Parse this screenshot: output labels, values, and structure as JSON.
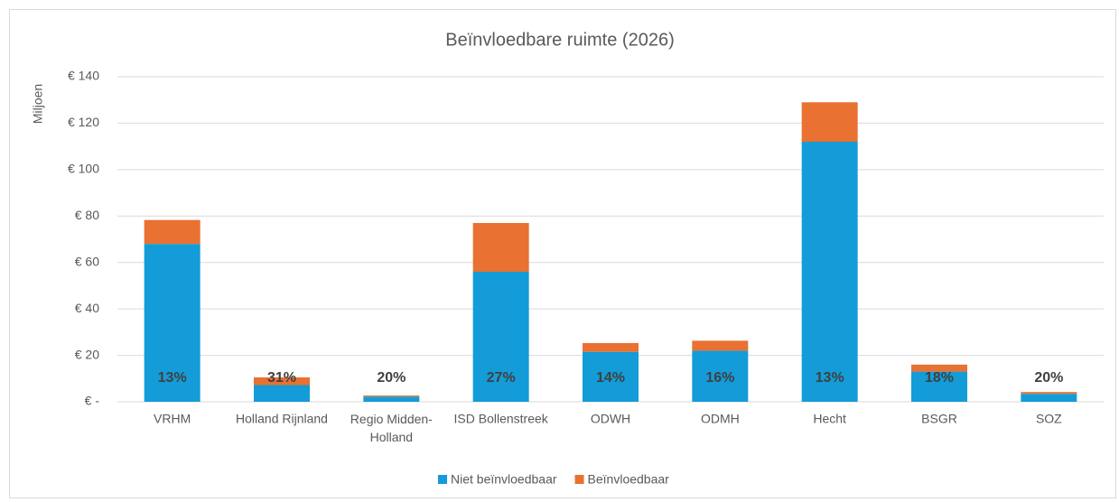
{
  "chart_data": {
    "type": "stacked_bar",
    "title": "Beïnvloedbare ruimte (2026)",
    "y_axis_label": "Miljoen",
    "categories": [
      "VRHM",
      "Holland Rijnland",
      "Regio Midden-Holland",
      "ISD Bollenstreek",
      "ODWH",
      "ODMH",
      "Hecht",
      "BSGR",
      "SOZ"
    ],
    "series": [
      {
        "name": "Niet beïnvloedbaar",
        "color": "#139cd8",
        "values": [
          68,
          7.2,
          2.2,
          56,
          21.5,
          22,
          112,
          13,
          3.4
        ]
      },
      {
        "name": "Beïnvloedbaar",
        "color": "#e97132",
        "values": [
          10.3,
          3.3,
          0.5,
          21,
          3.8,
          4.3,
          17,
          3,
          0.8
        ]
      }
    ],
    "annotations": [
      "13%",
      "31%",
      "20%",
      "27%",
      "14%",
      "16%",
      "13%",
      "18%",
      "20%"
    ],
    "ylim": [
      0,
      140
    ],
    "yticks": [
      {
        "value": 0,
        "label": "€ -"
      },
      {
        "value": 20,
        "label": "€ 20"
      },
      {
        "value": 40,
        "label": "€ 40"
      },
      {
        "value": 60,
        "label": "€ 60"
      },
      {
        "value": 80,
        "label": "€ 80"
      },
      {
        "value": 100,
        "label": "€ 100"
      },
      {
        "value": 120,
        "label": "€ 120"
      },
      {
        "value": 140,
        "label": "€ 140"
      }
    ],
    "grid": true,
    "legend": "bottom"
  }
}
